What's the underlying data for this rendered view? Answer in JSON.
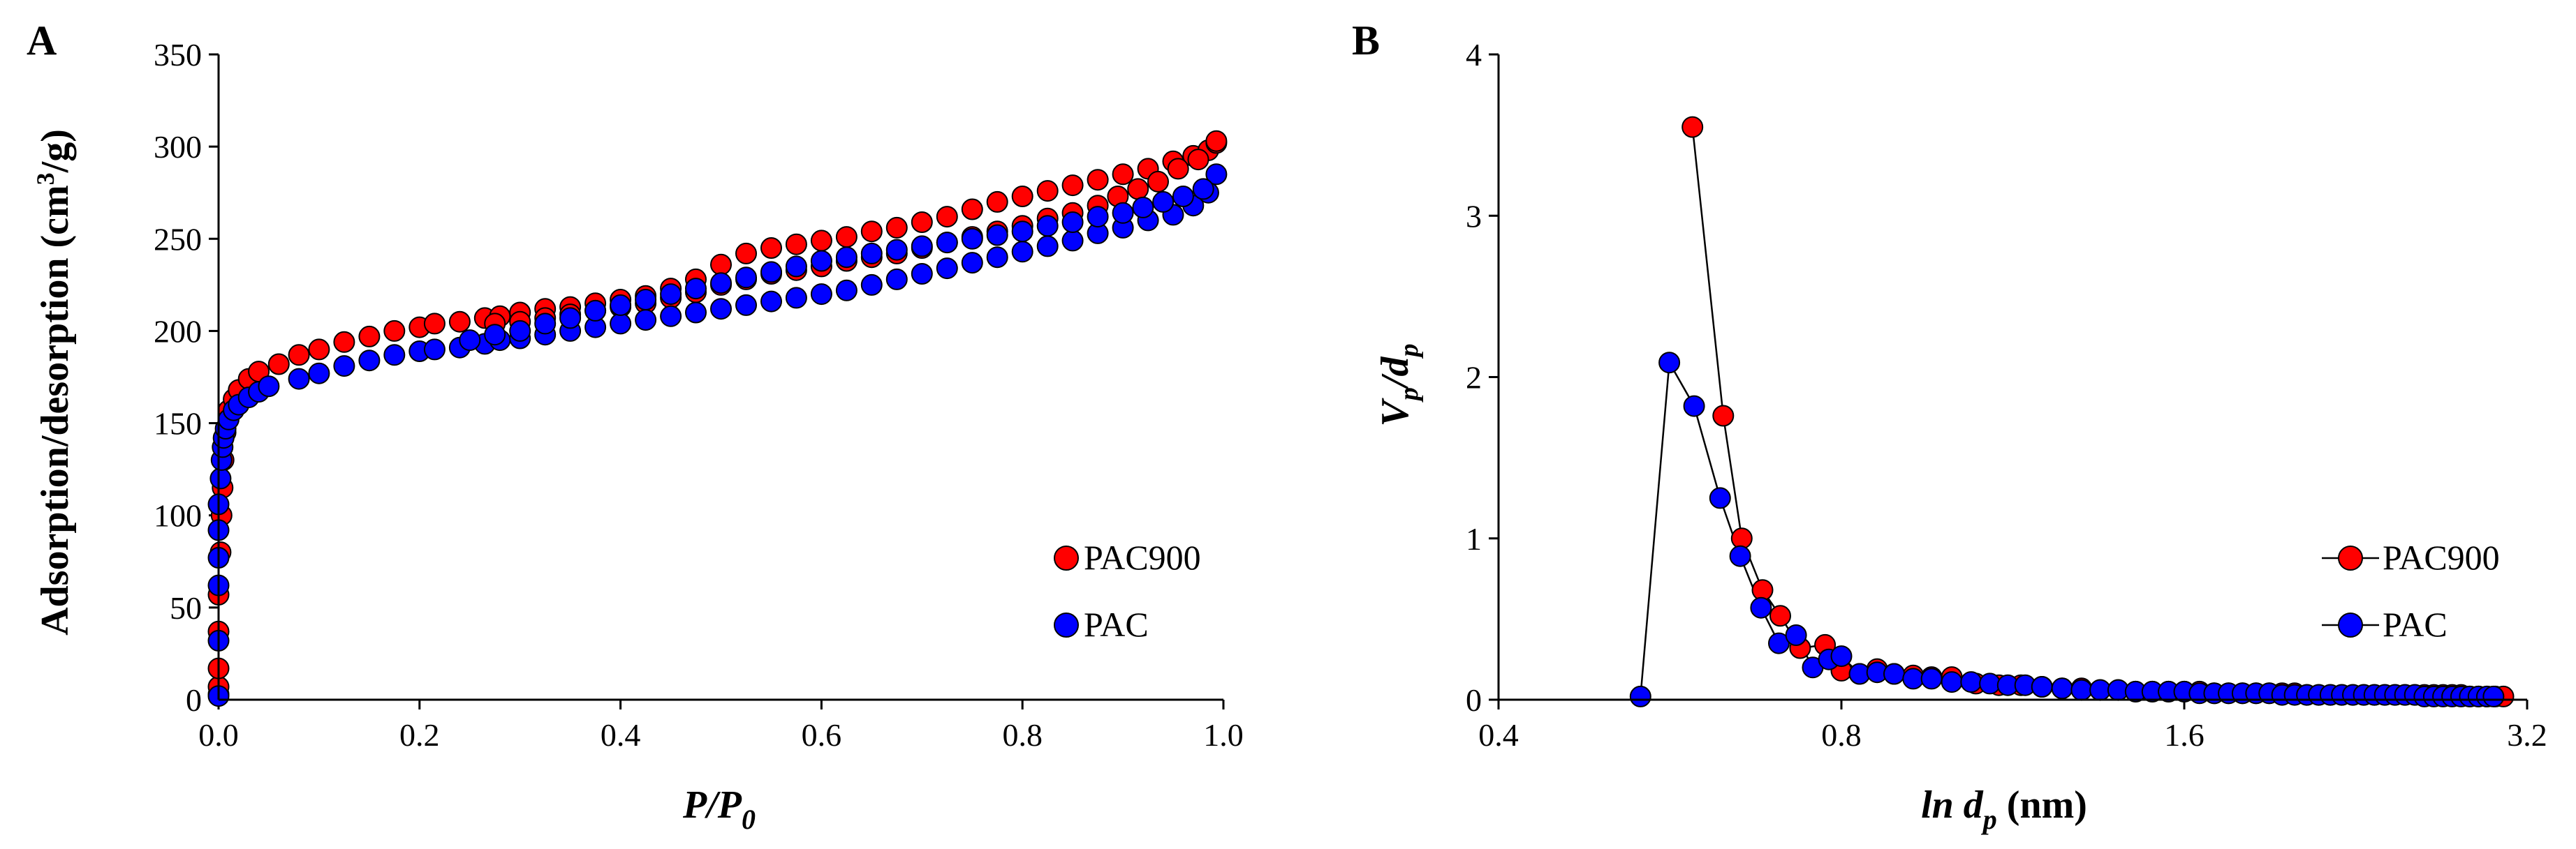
{
  "chart_data": [
    {
      "panel": "A",
      "type": "scatter",
      "xlabel_main": "P/P",
      "xlabel_sub": "0",
      "ylabel_main": "Adsorption/desorption (cm",
      "ylabel_sup": "3",
      "ylabel_tail": "/g)",
      "xlim": [
        0.0,
        1.0
      ],
      "ylim": [
        0,
        350
      ],
      "xticks": [
        "0.0",
        "0.2",
        "0.4",
        "0.6",
        "0.8",
        "1.0"
      ],
      "yticks": [
        "0",
        "50",
        "100",
        "150",
        "200",
        "250",
        "300",
        "350"
      ],
      "legend_position": "right-middle",
      "series": [
        {
          "name": "PAC900",
          "color": "#ff0000",
          "connected": false,
          "x": [
            0.0,
            0.0,
            0.0,
            0.0,
            0.0,
            0.002,
            0.003,
            0.004,
            0.005,
            0.007,
            0.01,
            0.015,
            0.02,
            0.03,
            0.04,
            0.06,
            0.08,
            0.1,
            0.125,
            0.15,
            0.175,
            0.2,
            0.215,
            0.24,
            0.265,
            0.28,
            0.3,
            0.325,
            0.35,
            0.375,
            0.4,
            0.425,
            0.45,
            0.475,
            0.5,
            0.525,
            0.55,
            0.575,
            0.6,
            0.625,
            0.65,
            0.675,
            0.7,
            0.725,
            0.75,
            0.775,
            0.8,
            0.825,
            0.85,
            0.875,
            0.9,
            0.925,
            0.95,
            0.97,
            0.985,
            0.993,
            0.993,
            0.975,
            0.955,
            0.935,
            0.915,
            0.895,
            0.875,
            0.85,
            0.825,
            0.8,
            0.775,
            0.75,
            0.725,
            0.7,
            0.675,
            0.65,
            0.625,
            0.6,
            0.575,
            0.55,
            0.525,
            0.5,
            0.475,
            0.45,
            0.425,
            0.4,
            0.375,
            0.35,
            0.325,
            0.3,
            0.275
          ],
          "y": [
            3,
            7,
            17,
            37,
            57,
            80,
            100,
            115,
            130,
            145,
            157,
            163,
            168,
            174,
            178,
            182,
            187,
            190,
            194,
            197,
            200,
            202,
            204,
            205,
            207,
            208,
            210,
            212,
            213,
            215,
            217,
            219,
            223,
            228,
            236,
            242,
            245,
            247,
            249,
            251,
            254,
            256,
            259,
            262,
            266,
            270,
            273,
            276,
            279,
            282,
            285,
            288,
            292,
            295,
            298,
            302,
            303,
            293,
            288,
            281,
            277,
            273,
            268,
            264,
            261,
            257,
            254,
            251,
            248,
            245,
            242,
            240,
            238,
            235,
            233,
            231,
            228,
            225,
            221,
            218,
            215,
            213,
            211,
            209,
            207,
            205,
            204
          ]
        },
        {
          "name": "PAC",
          "color": "#0000ff",
          "connected": false,
          "x": [
            0.0,
            0.0,
            0.0,
            0.0,
            0.0,
            0.0,
            0.002,
            0.003,
            0.004,
            0.005,
            0.007,
            0.01,
            0.015,
            0.02,
            0.03,
            0.04,
            0.05,
            0.08,
            0.1,
            0.125,
            0.15,
            0.175,
            0.2,
            0.215,
            0.24,
            0.265,
            0.28,
            0.3,
            0.325,
            0.35,
            0.375,
            0.4,
            0.425,
            0.45,
            0.475,
            0.5,
            0.525,
            0.55,
            0.575,
            0.6,
            0.625,
            0.65,
            0.675,
            0.7,
            0.725,
            0.75,
            0.775,
            0.8,
            0.825,
            0.85,
            0.875,
            0.9,
            0.925,
            0.95,
            0.97,
            0.985,
            0.993,
            0.98,
            0.96,
            0.94,
            0.92,
            0.9,
            0.875,
            0.85,
            0.825,
            0.8,
            0.775,
            0.75,
            0.725,
            0.7,
            0.675,
            0.65,
            0.625,
            0.6,
            0.575,
            0.55,
            0.525,
            0.5,
            0.475,
            0.45,
            0.425,
            0.4,
            0.375,
            0.35,
            0.325,
            0.3,
            0.275,
            0.25
          ],
          "y": [
            2,
            32,
            62,
            77,
            92,
            106,
            120,
            130,
            137,
            142,
            147,
            152,
            157,
            160,
            164,
            167,
            170,
            174,
            177,
            181,
            184,
            187,
            189,
            190,
            191,
            193,
            195,
            196,
            198,
            200,
            202,
            204,
            206,
            208,
            210,
            212,
            214,
            216,
            218,
            220,
            222,
            225,
            228,
            231,
            234,
            237,
            240,
            243,
            246,
            249,
            253,
            256,
            260,
            263,
            268,
            275,
            285,
            277,
            273,
            270,
            267,
            264,
            262,
            259,
            257,
            254,
            252,
            250,
            248,
            246,
            244,
            242,
            240,
            238,
            235,
            232,
            229,
            226,
            223,
            220,
            217,
            214,
            211,
            207,
            204,
            200,
            198,
            195
          ]
        }
      ]
    },
    {
      "panel": "B",
      "type": "line",
      "xlabel_main": "ln d",
      "xlabel_sub": "p",
      "xlabel_tail": " (nm)",
      "ylabel_main": "V",
      "ylabel_sub1": "p",
      "ylabel_mid": "/d",
      "ylabel_sub2": "p",
      "xlim": [
        0.4,
        3.2
      ],
      "ylim": [
        0,
        4
      ],
      "x_scale": "log2",
      "xticks": [
        "0.4",
        "0.8",
        "1.6",
        "3.2"
      ],
      "yticks": [
        "0",
        "1",
        "2",
        "3",
        "4"
      ],
      "legend_position": "right-middle",
      "series": [
        {
          "name": "PAC900",
          "color": "#ff0000",
          "connected": true,
          "x": [
            0.592,
            0.63,
            0.654,
            0.682,
            0.707,
            0.736,
            0.774,
            0.8,
            0.83,
            0.86,
            0.89,
            0.925,
            0.96,
            1.0,
            1.05,
            1.1,
            1.15,
            1.2,
            1.25,
            1.3,
            1.35,
            1.4,
            1.45,
            1.5,
            1.55,
            1.6,
            1.65,
            1.7,
            1.75,
            1.8,
            1.85,
            1.9,
            1.95,
            2.0,
            2.05,
            2.1,
            2.15,
            2.2,
            2.25,
            2.3,
            2.35,
            2.4,
            2.45,
            2.5,
            2.55,
            2.6,
            2.65,
            2.7,
            2.75,
            2.8,
            2.85,
            2.9,
            2.95,
            3.0,
            3.05
          ],
          "y": [
            3.55,
            1.76,
            1.0,
            0.68,
            0.52,
            0.32,
            0.34,
            0.18,
            0.16,
            0.19,
            0.16,
            0.15,
            0.14,
            0.14,
            0.1,
            0.09,
            0.09,
            0.08,
            0.07,
            0.07,
            0.06,
            0.06,
            0.05,
            0.05,
            0.05,
            0.05,
            0.05,
            0.04,
            0.04,
            0.04,
            0.04,
            0.04,
            0.04,
            0.04,
            0.03,
            0.03,
            0.03,
            0.03,
            0.03,
            0.03,
            0.03,
            0.03,
            0.03,
            0.03,
            0.03,
            0.03,
            0.03,
            0.03,
            0.03,
            0.03,
            0.02,
            0.02,
            0.02,
            0.02,
            0.02
          ]
        },
        {
          "name": "PAC",
          "color": "#0000ff",
          "connected": true,
          "x": [
            0.533,
            0.565,
            0.594,
            0.626,
            0.652,
            0.68,
            0.705,
            0.73,
            0.755,
            0.78,
            0.8,
            0.83,
            0.86,
            0.89,
            0.925,
            0.96,
            1.0,
            1.04,
            1.08,
            1.12,
            1.16,
            1.2,
            1.25,
            1.3,
            1.35,
            1.4,
            1.45,
            1.5,
            1.55,
            1.6,
            1.65,
            1.7,
            1.75,
            1.8,
            1.85,
            1.9,
            1.95,
            2.0,
            2.05,
            2.1,
            2.15,
            2.2,
            2.25,
            2.3,
            2.35,
            2.4,
            2.45,
            2.5,
            2.55,
            2.6,
            2.65,
            2.7,
            2.75,
            2.8,
            2.85,
            2.9,
            2.95,
            2.99
          ],
          "y": [
            0.02,
            2.09,
            1.82,
            1.25,
            0.89,
            0.57,
            0.35,
            0.4,
            0.2,
            0.25,
            0.27,
            0.16,
            0.17,
            0.16,
            0.13,
            0.13,
            0.11,
            0.11,
            0.1,
            0.09,
            0.09,
            0.08,
            0.07,
            0.06,
            0.06,
            0.06,
            0.05,
            0.05,
            0.05,
            0.05,
            0.04,
            0.04,
            0.04,
            0.04,
            0.04,
            0.04,
            0.03,
            0.03,
            0.03,
            0.03,
            0.03,
            0.03,
            0.03,
            0.03,
            0.03,
            0.03,
            0.03,
            0.03,
            0.03,
            0.02,
            0.02,
            0.02,
            0.02,
            0.02,
            0.02,
            0.02,
            0.02,
            0.02
          ]
        }
      ]
    }
  ]
}
